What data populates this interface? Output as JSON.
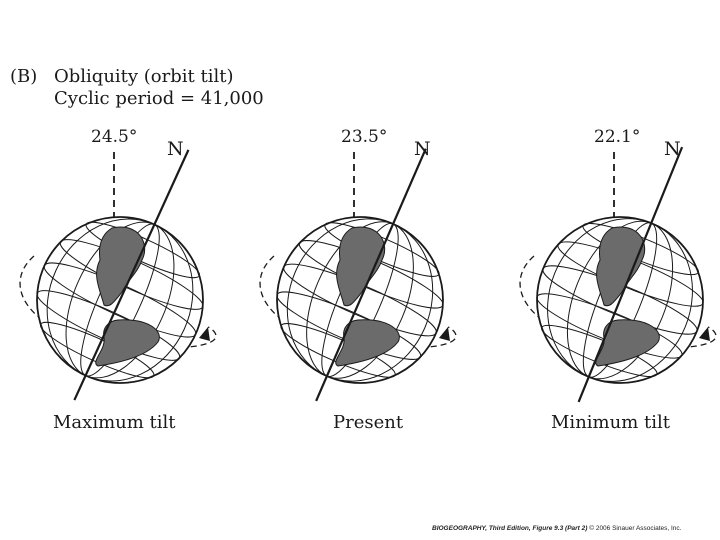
{
  "header": {
    "tag": "(B)",
    "title": "Obliquity (orbit tilt)",
    "subtitle": "Cyclic period = 41,000"
  },
  "globes": [
    {
      "angle": "24.5°",
      "north": "N",
      "caption": "Maximum tilt",
      "tilt_deg": 24.5
    },
    {
      "angle": "23.5°",
      "north": "N",
      "caption": "Present",
      "tilt_deg": 23.5
    },
    {
      "angle": "22.1°",
      "north": "N",
      "caption": "Minimum tilt",
      "tilt_deg": 22.1
    }
  ],
  "credit": {
    "book": "BIOGEOGRAPHY, Third Edition, Figure 9.3 (Part 2)",
    "rest": "© 2006 Sinauer Associates, Inc."
  },
  "colors": {
    "ink": "#1a1a1a",
    "land": "#6b6b6b"
  }
}
